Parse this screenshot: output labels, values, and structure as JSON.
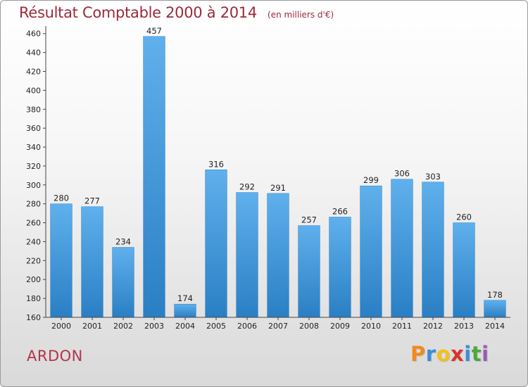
{
  "header": {
    "title": "Résultat Comptable 2000 à 2014",
    "unit": "(en milliers d'€)"
  },
  "place": "ARDON",
  "logo": {
    "letters": [
      "P",
      "r",
      "o",
      "x",
      "i",
      "t",
      "i"
    ],
    "colors": [
      "#f28a1c",
      "#3a8ed8",
      "#f2c11c",
      "#d8342c",
      "#3a8ed8",
      "#4aa83c",
      "#9b59b6"
    ]
  },
  "colors": {
    "bar_light": "#5fb0ec",
    "bar_dark": "#2a7fc4",
    "title": "#9b2a3a"
  },
  "chart_data": {
    "type": "bar",
    "categories": [
      "2000",
      "2001",
      "2002",
      "2003",
      "2004",
      "2005",
      "2006",
      "2007",
      "2008",
      "2009",
      "2010",
      "2011",
      "2012",
      "2013",
      "2014"
    ],
    "values": [
      280,
      277,
      234,
      457,
      174,
      316,
      292,
      291,
      257,
      266,
      299,
      306,
      303,
      260,
      178
    ],
    "ylim": [
      160,
      465
    ],
    "yticks": [
      160,
      180,
      200,
      220,
      240,
      260,
      280,
      300,
      320,
      340,
      360,
      380,
      400,
      420,
      440,
      460
    ],
    "grid": false
  }
}
